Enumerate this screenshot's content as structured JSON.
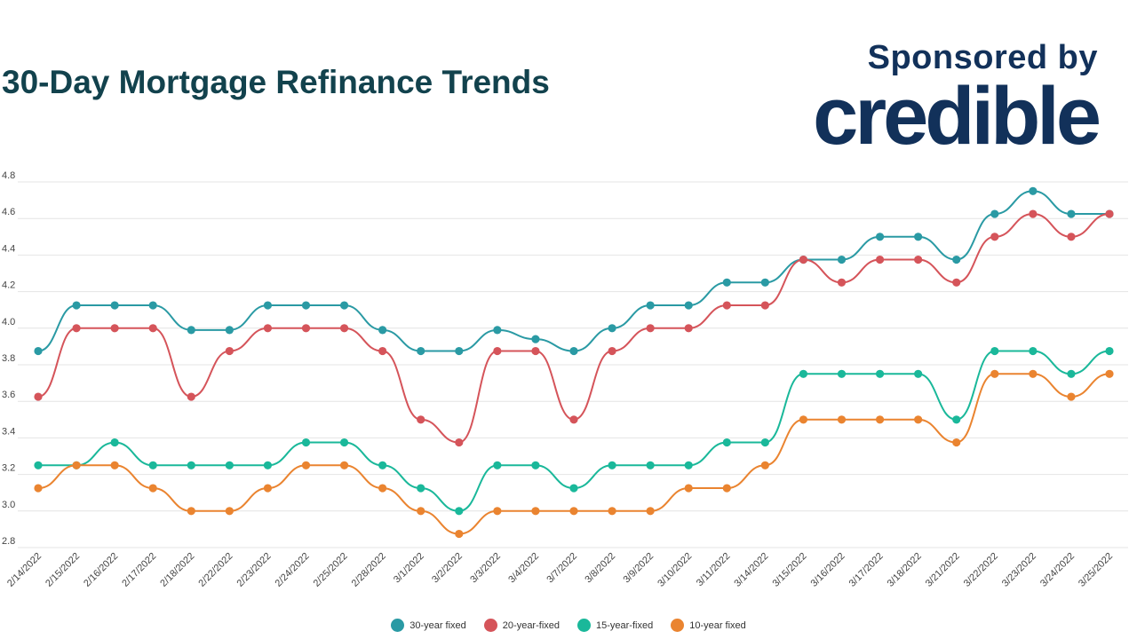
{
  "header": {
    "title": "30-Day Mortgage Refinance Trends",
    "sponsor_text": "Sponsored by",
    "brand": "credible"
  },
  "colors": {
    "title": "#12424d",
    "brand": "#12315a",
    "grid": "#e4e4e4"
  },
  "chart_data": {
    "type": "line",
    "title": "30-Day Mortgage Refinance Trends",
    "xlabel": "",
    "ylabel": "",
    "categories": [
      "2/14/2022",
      "2/15/2022",
      "2/16/2022",
      "2/17/2022",
      "2/18/2022",
      "2/22/2022",
      "2/23/2022",
      "2/24/2022",
      "2/25/2022",
      "2/28/2022",
      "3/1/2022",
      "3/2/2022",
      "3/3/2022",
      "3/4/2022",
      "3/7/2022",
      "3/8/2022",
      "3/9/2022",
      "3/10/2022",
      "3/11/2022",
      "3/14/2022",
      "3/15/2022",
      "3/16/2022",
      "3/17/2022",
      "3/18/2022",
      "3/21/2022",
      "3/22/2022",
      "3/23/2022",
      "3/24/2022",
      "3/25/2022"
    ],
    "ylim": [
      2.8,
      4.8
    ],
    "yticks": [
      "2.8",
      "3.0",
      "3.2",
      "3.4",
      "3.6",
      "3.8",
      "4.0",
      "4.2",
      "4.4",
      "4.6",
      "4.8"
    ],
    "grid": true,
    "legend_position": "bottom",
    "series": [
      {
        "name": "30-year fixed",
        "color": "#2a9aa4",
        "values": [
          3.875,
          4.125,
          4.125,
          4.125,
          3.99,
          3.99,
          4.125,
          4.125,
          4.125,
          3.99,
          3.875,
          3.875,
          3.99,
          3.94,
          3.875,
          4.0,
          4.125,
          4.125,
          4.25,
          4.25,
          4.375,
          4.375,
          4.5,
          4.5,
          4.375,
          4.625,
          4.75,
          4.625,
          4.625
        ]
      },
      {
        "name": "20-year-fixed",
        "color": "#d5545a",
        "values": [
          3.625,
          4.0,
          4.0,
          4.0,
          3.625,
          3.875,
          4.0,
          4.0,
          4.0,
          3.875,
          3.5,
          3.375,
          3.875,
          3.875,
          3.5,
          3.875,
          4.0,
          4.0,
          4.125,
          4.125,
          4.375,
          4.25,
          4.375,
          4.375,
          4.25,
          4.5,
          4.625,
          4.5,
          4.625
        ]
      },
      {
        "name": "15-year-fixed",
        "color": "#1ab89a",
        "values": [
          3.25,
          3.25,
          3.375,
          3.25,
          3.25,
          3.25,
          3.25,
          3.375,
          3.375,
          3.25,
          3.125,
          3.0,
          3.25,
          3.25,
          3.125,
          3.25,
          3.25,
          3.25,
          3.375,
          3.375,
          3.75,
          3.75,
          3.75,
          3.75,
          3.5,
          3.875,
          3.875,
          3.75,
          3.875
        ]
      },
      {
        "name": "10-year fixed",
        "color": "#ea8430",
        "values": [
          3.125,
          3.25,
          3.25,
          3.125,
          3.0,
          3.0,
          3.125,
          3.25,
          3.25,
          3.125,
          3.0,
          2.875,
          3.0,
          3.0,
          3.0,
          3.0,
          3.0,
          3.125,
          3.125,
          3.25,
          3.5,
          3.5,
          3.5,
          3.5,
          3.375,
          3.75,
          3.75,
          3.625,
          3.75
        ]
      }
    ]
  }
}
